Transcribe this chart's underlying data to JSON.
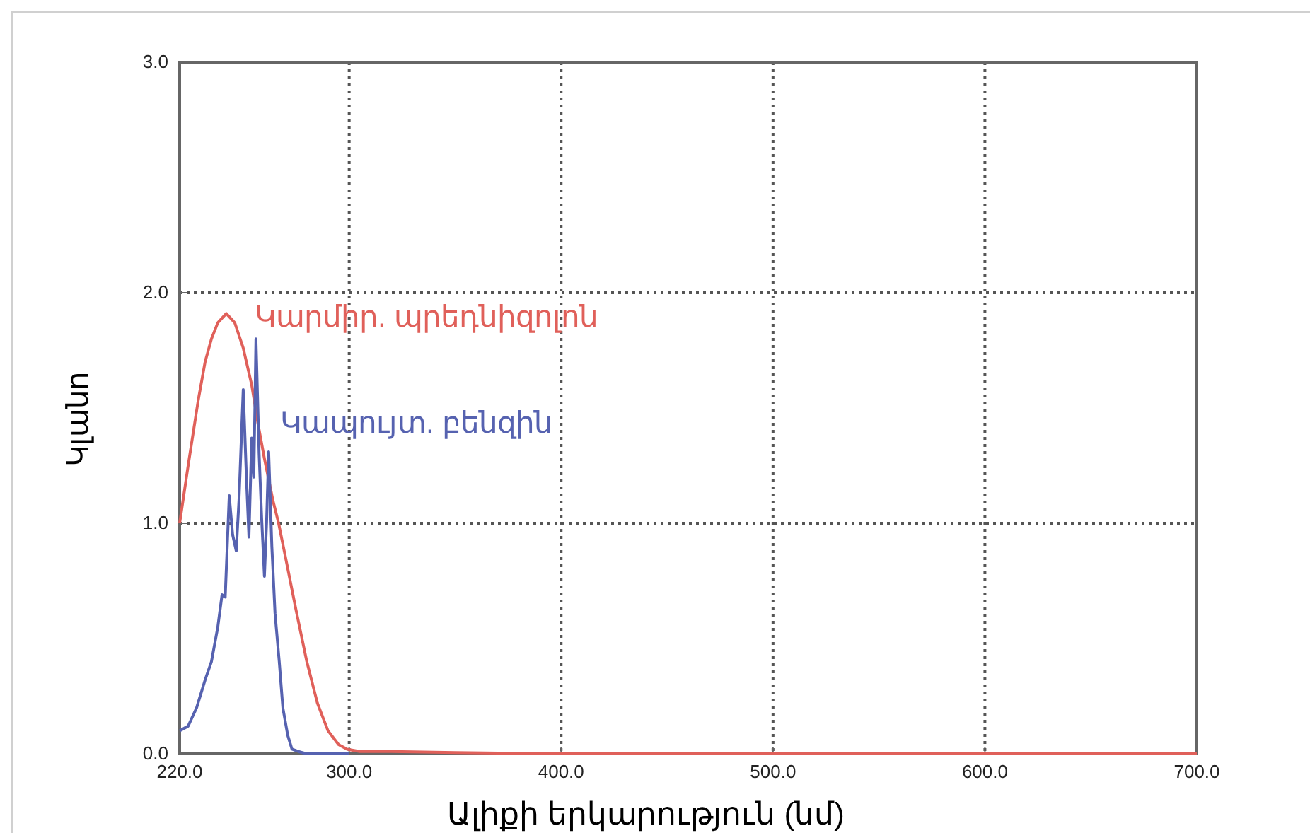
{
  "chart_data": {
    "type": "line",
    "xlabel": "Ալիքի երկարություն (նմ)",
    "ylabel": "Կլանո",
    "xlim": [
      220,
      700
    ],
    "ylim": [
      0,
      3
    ],
    "xticks": [
      {
        "value": 220,
        "label": "220.0"
      },
      {
        "value": 300,
        "label": "300.0"
      },
      {
        "value": 400,
        "label": "400.0"
      },
      {
        "value": 500,
        "label": "500.0"
      },
      {
        "value": 600,
        "label": "600.0"
      },
      {
        "value": 700,
        "label": "700.0"
      }
    ],
    "yticks": [
      {
        "value": 0,
        "label": "0.0"
      },
      {
        "value": 1,
        "label": "1.0"
      },
      {
        "value": 2,
        "label": "2.0"
      },
      {
        "value": 3,
        "label": "3.0"
      }
    ],
    "grid": true,
    "line_style": "solid",
    "marker": "none",
    "series": [
      {
        "name": "Կարմիր. պրեդնիզոլոն",
        "color": "#e0605a",
        "x": [
          220,
          224,
          228.7,
          232,
          235,
          238,
          242,
          246,
          250,
          254,
          257,
          260,
          264,
          266.7,
          270,
          275,
          280,
          285,
          290,
          295,
          299,
          305,
          320,
          350,
          400,
          500,
          600,
          700
        ],
        "values": [
          1.0,
          1.25,
          1.53,
          1.7,
          1.8,
          1.87,
          1.91,
          1.87,
          1.76,
          1.6,
          1.43,
          1.28,
          1.1,
          1.0,
          0.85,
          0.62,
          0.4,
          0.22,
          0.1,
          0.04,
          0.02,
          0.01,
          0.01,
          0.005,
          0,
          0,
          0,
          0
        ]
      },
      {
        "name": "Կապույտ. բենզին",
        "color": "#5662b0",
        "x": [
          220,
          224,
          228,
          232,
          235,
          238,
          240,
          241.5,
          243.4,
          245,
          246.7,
          248,
          250,
          251.5,
          252.7,
          254,
          255,
          256,
          257.5,
          258.7,
          260,
          261,
          262,
          263.5,
          265,
          267,
          268.7,
          271,
          273,
          276,
          280,
          300
        ],
        "values": [
          0.1,
          0.12,
          0.2,
          0.32,
          0.4,
          0.55,
          0.69,
          0.68,
          1.12,
          0.95,
          0.88,
          1.1,
          1.58,
          1.2,
          0.94,
          1.37,
          1.2,
          1.8,
          1.3,
          1.02,
          0.77,
          1.0,
          1.31,
          0.9,
          0.61,
          0.4,
          0.2,
          0.08,
          0.02,
          0.01,
          0,
          0
        ]
      }
    ]
  }
}
